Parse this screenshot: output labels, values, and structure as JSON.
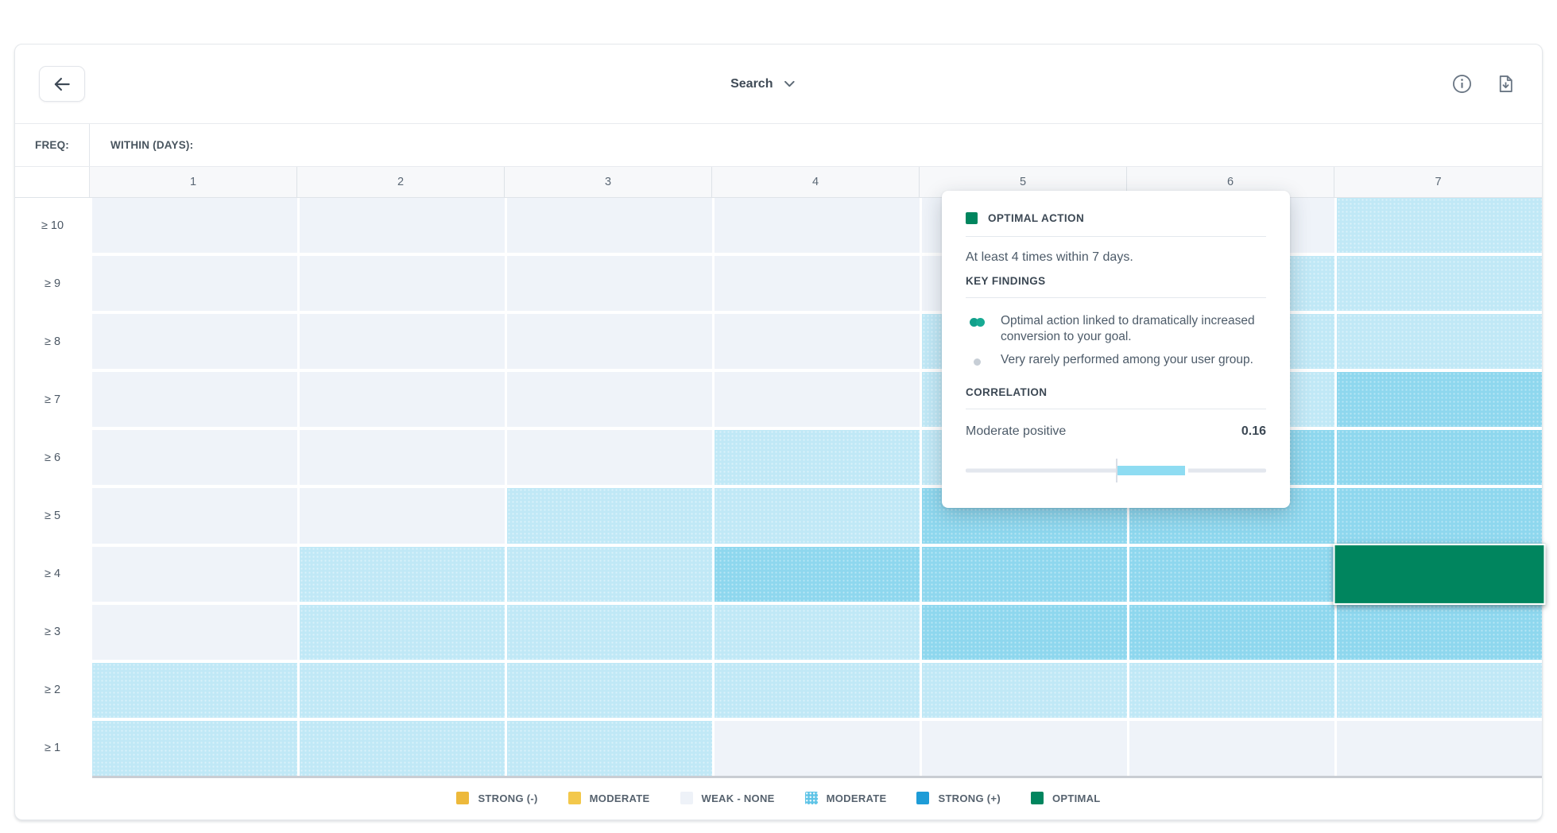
{
  "toolbar": {
    "search_label": "Search"
  },
  "matrix_header": {
    "freq_label": "FREQ:",
    "within_label": "WITHIN (DAYS):"
  },
  "chart_data": {
    "type": "heatmap",
    "x_axis_label": "WITHIN (DAYS):",
    "y_axis_label": "FREQ:",
    "columns": [
      "1",
      "2",
      "3",
      "4",
      "5",
      "6",
      "7"
    ],
    "rows": [
      "≥ 10",
      "≥ 9",
      "≥ 8",
      "≥ 7",
      "≥ 6",
      "≥ 5",
      "≥ 4",
      "≥ 3",
      "≥ 2",
      "≥ 1"
    ],
    "level_meaning": {
      "0": "weak-none",
      "1": "moderate",
      "2": "moderate-strong",
      "3": "optimal"
    },
    "matrix": [
      [
        0,
        0,
        0,
        0,
        0,
        0,
        1
      ],
      [
        0,
        0,
        0,
        0,
        0,
        1,
        1
      ],
      [
        0,
        0,
        0,
        0,
        1,
        1,
        1
      ],
      [
        0,
        0,
        0,
        0,
        1,
        1,
        2
      ],
      [
        0,
        0,
        0,
        1,
        1,
        2,
        2
      ],
      [
        0,
        0,
        1,
        1,
        2,
        2,
        2
      ],
      [
        0,
        1,
        1,
        2,
        2,
        2,
        3
      ],
      [
        0,
        1,
        1,
        1,
        2,
        2,
        2
      ],
      [
        1,
        1,
        1,
        1,
        1,
        1,
        1
      ],
      [
        1,
        1,
        1,
        0,
        0,
        0,
        0
      ]
    ],
    "selected_cell": {
      "row": "≥ 4",
      "column": "7",
      "level": "optimal"
    },
    "colors": {
      "weak_none": "#EFF3F9",
      "moderate": "#C0E8F6",
      "moderate_strong": "#8ED7EE",
      "optimal": "#00855E"
    },
    "legend_position": "bottom"
  },
  "legend": {
    "items": [
      {
        "label": "STRONG (-)",
        "color": "#EDB93B",
        "dotted": false
      },
      {
        "label": "MODERATE",
        "color": "#F3C84B",
        "dotted": false
      },
      {
        "label": "WEAK - NONE",
        "color": "#EEF2F8",
        "dotted": false
      },
      {
        "label": "MODERATE",
        "color": "#5FC4E7",
        "dotted": true
      },
      {
        "label": "STRONG (+)",
        "color": "#1E9CD7",
        "dotted": false
      },
      {
        "label": "OPTIMAL",
        "color": "#00855E",
        "dotted": false
      }
    ]
  },
  "popover": {
    "title": "OPTIMAL ACTION",
    "subtitle": "At least 4 times within 7 days.",
    "findings_heading": "KEY FINDINGS",
    "findings": [
      {
        "icon": "double-dot-teal",
        "text": "Optimal action linked to dramatically increased conversion to your goal."
      },
      {
        "icon": "dot-gray",
        "text": "Very rarely performed among your user group."
      }
    ],
    "correlation_heading": "CORRELATION",
    "correlation_label": "Moderate positive",
    "correlation_value": "0.16",
    "accent_color": "#00855E",
    "slider_fill_color": "#8EDCF2"
  }
}
